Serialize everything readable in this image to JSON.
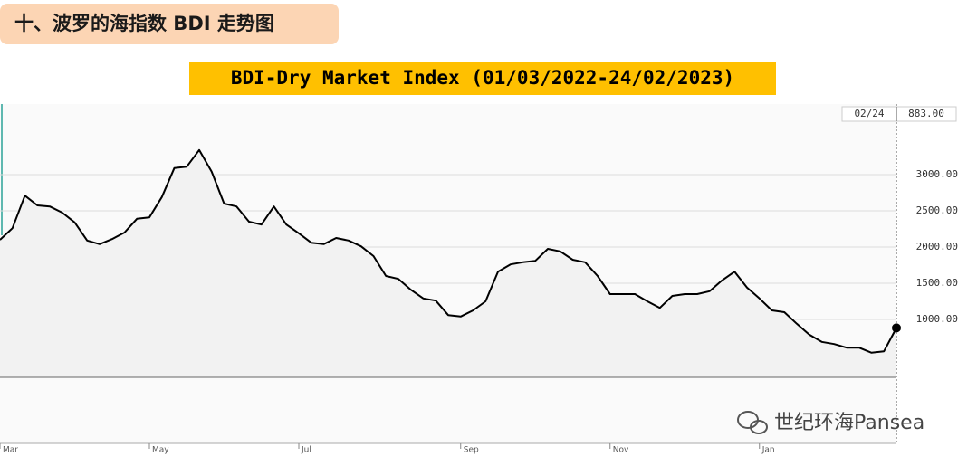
{
  "header": "十、波罗的海指数 BDI 走势图",
  "watermark": "世纪环海Pansea",
  "chart_data": {
    "type": "line",
    "title": "BDI-Dry Market Index (01/03/2022-24/02/2023)",
    "categories": [
      "Mar",
      null,
      null,
      null,
      null,
      null,
      null,
      null,
      null,
      null,
      null,
      null,
      "May",
      null,
      null,
      null,
      null,
      null,
      null,
      null,
      null,
      null,
      null,
      null,
      "Jul",
      null,
      null,
      null,
      null,
      null,
      null,
      null,
      null,
      null,
      null,
      null,
      null,
      "Sep",
      null,
      null,
      null,
      null,
      null,
      null,
      null,
      null,
      null,
      null,
      null,
      "Nov",
      null,
      null,
      null,
      null,
      null,
      null,
      null,
      null,
      null,
      null,
      null,
      "Jan",
      null,
      null,
      null,
      null,
      null,
      null,
      null,
      null,
      null,
      null,
      null
    ],
    "values": [
      2100,
      2260,
      2710,
      2575,
      2560,
      2475,
      2340,
      2090,
      2040,
      2110,
      2200,
      2390,
      2410,
      2690,
      3090,
      3110,
      3340,
      3040,
      2600,
      2560,
      2350,
      2310,
      2560,
      2310,
      2190,
      2060,
      2040,
      2125,
      2090,
      2010,
      1875,
      1600,
      1560,
      1410,
      1290,
      1260,
      1060,
      1040,
      1125,
      1250,
      1660,
      1760,
      1790,
      1810,
      1975,
      1940,
      1825,
      1790,
      1600,
      1350,
      1350,
      1350,
      1250,
      1160,
      1325,
      1350,
      1350,
      1390,
      1540,
      1660,
      1440,
      1290,
      1125,
      1100,
      940,
      790,
      690,
      660,
      610,
      610,
      540,
      560,
      883
    ],
    "color": "#000000",
    "fill": "#f2f2f2",
    "ylim": [
      200,
      3975
    ],
    "yticks": [
      {
        "value": 1000,
        "label": "1000.00"
      },
      {
        "value": 1500,
        "label": "1500.00"
      },
      {
        "value": 2000,
        "label": "2000.00"
      },
      {
        "value": 2500,
        "label": "2500.00"
      },
      {
        "value": 3000,
        "label": "3000.00"
      }
    ],
    "grid": true,
    "annotations": [
      "02/24",
      "883.00"
    ]
  }
}
